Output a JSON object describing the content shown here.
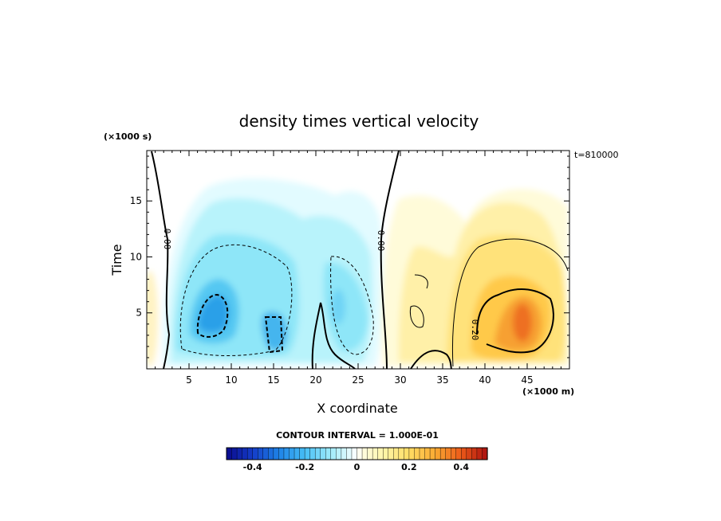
{
  "chart_data": {
    "type": "heatmap",
    "title": "density times vertical velocity",
    "xlabel": "X coordinate",
    "ylabel": "Time",
    "x_units": "(×1000 m)",
    "y_units": "(×1000 s)",
    "time_label": "t=810000",
    "xlim": [
      0,
      50
    ],
    "ylim": [
      0,
      19.5
    ],
    "x_ticks": [
      5,
      10,
      15,
      20,
      25,
      30,
      35,
      40,
      45
    ],
    "y_ticks": [
      5,
      10,
      15
    ],
    "contour_interval_label": "CONTOUR INTERVAL = 1.000E-01",
    "contour_labels": [
      "0.00",
      "0.00",
      "0.20"
    ],
    "colorbar": {
      "range": [
        -0.5,
        0.5
      ],
      "ticks": [
        -0.4,
        -0.2,
        0,
        0.2,
        0.4
      ],
      "tick_labels": [
        "-0.4",
        "-0.2",
        "0",
        "0.2",
        "0.4"
      ]
    },
    "field_features": [
      {
        "name": "negative core A",
        "x": 8.0,
        "y": 4.5,
        "value": -0.28
      },
      {
        "name": "negative core B",
        "x": 15.5,
        "y": 3.0,
        "value": -0.25
      },
      {
        "name": "negative core C",
        "x": 23.0,
        "y": 5.0,
        "value": -0.22
      },
      {
        "name": "positive core",
        "x": 44.5,
        "y": 4.0,
        "value": 0.38
      }
    ]
  },
  "colors": {
    "negative": "#1a6fdc",
    "positive": "#e0401a",
    "neutral": "#ffffff"
  }
}
